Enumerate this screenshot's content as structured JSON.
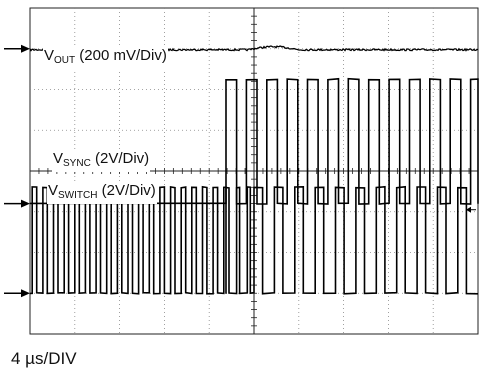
{
  "chart_data": {
    "type": "line",
    "instrument": "oscilloscope",
    "grid": {
      "horizontal_divisions": 10,
      "vertical_divisions": 8,
      "style": "dotted",
      "center_axes_ticked": true
    },
    "timebase": "4 µs/DIV",
    "x_range_us": [
      0,
      40
    ],
    "sync_applied_at_us": 17.5,
    "channels": [
      {
        "key": "vout",
        "label_main": "V",
        "label_sub": "OUT",
        "label_rest": " (200 mV/Div)",
        "ground_marker_div": 1.0,
        "waveform": "dc-with-small-step",
        "note": "flat trace with slight bump after sync is applied near center"
      },
      {
        "key": "vsync",
        "label_main": "V",
        "label_sub": "SYNC",
        "label_rest": " (2V/Div)",
        "ground_marker_div": 4.8,
        "waveform": "square",
        "start_us": 17.5,
        "period_us": 1.82,
        "duty": 0.52,
        "amplitude_div": 3.05
      },
      {
        "key": "vswitch",
        "label_main": "V",
        "label_sub": "SWITCH",
        "label_rest": " (2V/Div)",
        "ground_marker_div": 7.0,
        "waveform": "square",
        "segments": [
          {
            "start_us": 0.2,
            "end_us": 17.5,
            "period_us": 0.95,
            "duty": 0.42
          },
          {
            "start_us": 17.5,
            "end_us": 20.0,
            "period_us": 0.95,
            "duty": 0.28
          },
          {
            "start_us": 20.0,
            "end_us": 40.0,
            "period_us": 1.82,
            "duty": 0.42
          }
        ],
        "amplitude_div": 2.6
      }
    ]
  }
}
